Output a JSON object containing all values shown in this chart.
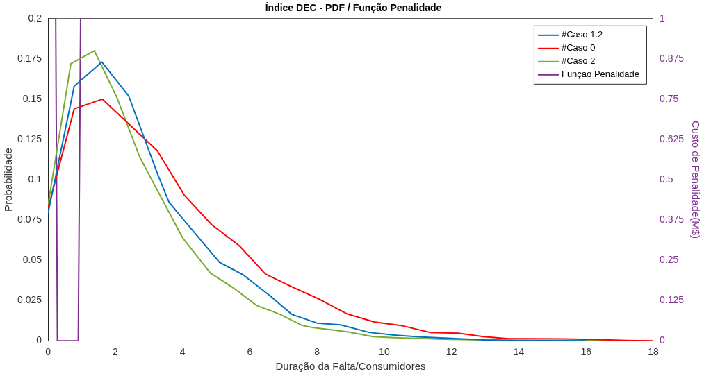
{
  "chart_data": {
    "type": "line",
    "title": "Índice DEC - PDF / Função Penalidade",
    "xlabel": "Duração da Falta/Consumidores",
    "ylabel": "Probabilidade",
    "y2label": "Custo de Penalidade(M$)",
    "xlim": [
      0,
      18
    ],
    "xticks": [
      0,
      2,
      4,
      6,
      8,
      10,
      12,
      14,
      16,
      18
    ],
    "ylim": [
      0,
      0.2
    ],
    "yticks": [
      0,
      0.025,
      0.05,
      0.075,
      0.1,
      0.125,
      0.15,
      0.175,
      0.2
    ],
    "y2lim": [
      0,
      1
    ],
    "y2ticks": [
      0,
      0.125,
      0.25,
      0.375,
      0.5,
      0.625,
      0.75,
      0.875,
      1
    ],
    "grid": false,
    "legend": "top right",
    "marker": "none",
    "line_style": "solid",
    "series": [
      {
        "name": "#Caso 1.2",
        "color": "#0072bd",
        "x": [
          0,
          0.78,
          1.6,
          2.4,
          3.25,
          3.6,
          4.4,
          5.1,
          5.8,
          6.6,
          7.25,
          8.0,
          8.7,
          9.55,
          10.3,
          11.0,
          12.0,
          13.0,
          14.0,
          16.0
        ],
        "values": [
          0.079,
          0.158,
          0.173,
          0.152,
          0.104,
          0.086,
          0.066,
          0.0487,
          0.041,
          0.028,
          0.0164,
          0.011,
          0.0099,
          0.0052,
          0.0035,
          0.0025,
          0.0015,
          0.0005,
          0.0002,
          0
        ]
      },
      {
        "name": "#Caso 0",
        "color": "#ff0000",
        "x": [
          0,
          0.78,
          1.62,
          3.25,
          4.05,
          4.87,
          5.69,
          6.47,
          7.23,
          8.05,
          8.88,
          9.72,
          10.5,
          11.36,
          12.2,
          12.95,
          13.7,
          15.3,
          16.2,
          17.2,
          18.0
        ],
        "values": [
          0.082,
          0.144,
          0.15,
          0.118,
          0.0905,
          0.072,
          0.059,
          0.0414,
          0.0337,
          0.026,
          0.0168,
          0.0116,
          0.0095,
          0.0052,
          0.0047,
          0.0026,
          0.0013,
          0.0012,
          0.0008,
          0.0002,
          0
        ]
      },
      {
        "name": "#Caso 2",
        "color": "#77ac30",
        "x": [
          0,
          0.68,
          1.38,
          2.05,
          2.73,
          4.0,
          4.83,
          5.5,
          6.2,
          6.9,
          7.56,
          7.9,
          8.9,
          9.66,
          10.4,
          12.0,
          14.0,
          17.2
        ],
        "values": [
          0.084,
          0.172,
          0.18,
          0.151,
          0.114,
          0.064,
          0.042,
          0.033,
          0.022,
          0.0164,
          0.0095,
          0.0082,
          0.0056,
          0.0026,
          0.0018,
          0.0008,
          0.0002,
          0
        ]
      },
      {
        "name": "Função Penalidade",
        "color": "#7e2f8e",
        "axis": "y2",
        "x": [
          0,
          0.23,
          0.28,
          0.9,
          0.97,
          18
        ],
        "values": [
          1,
          1,
          0,
          0,
          1,
          1
        ]
      }
    ]
  }
}
